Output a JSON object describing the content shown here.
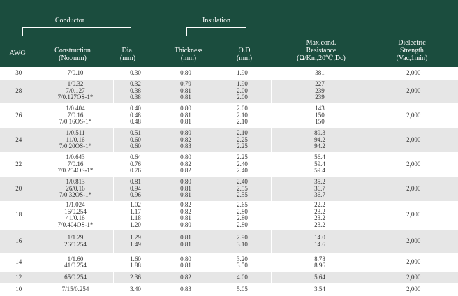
{
  "header": {
    "conductor_group": "Conductor",
    "insulation_group": "Insulation",
    "awg": "AWG",
    "construction": "Construction",
    "construction_unit": "(No./mm)",
    "dia": "Dia.",
    "dia_unit": "(mm)",
    "thickness": "Thickness",
    "thickness_unit": "(mm)",
    "od": "O.D",
    "od_unit": "(mm)",
    "resistance_l1": "Max.cond.",
    "resistance_l2": "Resistance",
    "resistance_unit": "(Ω/Km,20℃,Dc)",
    "dielectric_l1": "Dielectric",
    "dielectric_l2": "Strength",
    "dielectric_unit": "(Vac,1min)"
  },
  "colors": {
    "header_bg": "#1b4d3e",
    "alt_row": "#e6e6e6",
    "text": "#333333"
  },
  "rows": [
    {
      "awg": "30",
      "lines": [
        {
          "c": "7/0.10",
          "d": "0.30",
          "t": "0.80",
          "o": "1.90",
          "r": "381"
        }
      ],
      "ds": "2,000"
    },
    {
      "awg": "28",
      "lines": [
        {
          "c": "1/0.32",
          "d": "0.32",
          "t": "0.79",
          "o": "1.90",
          "r": "227"
        },
        {
          "c": "7/0.127",
          "d": "0.38",
          "t": "0.81",
          "o": "2.00",
          "r": "239"
        },
        {
          "c": "7/0.127OS-1*",
          "d": "0.38",
          "t": "0.81",
          "o": "2.00",
          "r": "239"
        }
      ],
      "ds": "2,000"
    },
    {
      "awg": "26",
      "lines": [
        {
          "c": "1/0.404",
          "d": "0.40",
          "t": "0.80",
          "o": "2.00",
          "r": "143"
        },
        {
          "c": "7/0.16",
          "d": "0.48",
          "t": "0.81",
          "o": "2.10",
          "r": "150"
        },
        {
          "c": "7/0.16OS-1*",
          "d": "0.48",
          "t": "0.81",
          "o": "2.10",
          "r": "150"
        }
      ],
      "ds": "2,000"
    },
    {
      "awg": "24",
      "lines": [
        {
          "c": "1/0.511",
          "d": "0.51",
          "t": "0.80",
          "o": "2.10",
          "r": "89.3"
        },
        {
          "c": "11/0.16",
          "d": "0.60",
          "t": "0.82",
          "o": "2.25",
          "r": "94.2"
        },
        {
          "c": "7/0.20OS-1*",
          "d": "0.60",
          "t": "0.83",
          "o": "2.25",
          "r": "94.2"
        }
      ],
      "ds": "2,000"
    },
    {
      "awg": "22",
      "lines": [
        {
          "c": "1/0.643",
          "d": "0.64",
          "t": "0.80",
          "o": "2.25",
          "r": "56.4"
        },
        {
          "c": "7/0.16",
          "d": "0.76",
          "t": "0.82",
          "o": "2.40",
          "r": "59.4"
        },
        {
          "c": "7/0.254OS-1*",
          "d": "0.76",
          "t": "0.82",
          "o": "2.40",
          "r": "59.4"
        }
      ],
      "ds": "2,000"
    },
    {
      "awg": "20",
      "lines": [
        {
          "c": "1/0.813",
          "d": "0.81",
          "t": "0.80",
          "o": "2.40",
          "r": "35.2"
        },
        {
          "c": "26/0.16",
          "d": "0.94",
          "t": "0.81",
          "o": "2.55",
          "r": "36.7"
        },
        {
          "c": "7/0.32OS-1*",
          "d": "0.96",
          "t": "0.81",
          "o": "2.55",
          "r": "36.7"
        }
      ],
      "ds": "2,000"
    },
    {
      "awg": "18",
      "lines": [
        {
          "c": "1/1.024",
          "d": "1.02",
          "t": "0.82",
          "o": "2.65",
          "r": "22.2"
        },
        {
          "c": "16/0.254",
          "d": "1.17",
          "t": "0.82",
          "o": "2.80",
          "r": "23.2"
        },
        {
          "c": "41/0.16",
          "d": "1.18",
          "t": "0.81",
          "o": "2.80",
          "r": "23.2"
        },
        {
          "c": "7/0.404OS-1*",
          "d": "1.20",
          "t": "0.80",
          "o": "2.80",
          "r": "23.2"
        }
      ],
      "ds": "2,000"
    },
    {
      "awg": "16",
      "lines": [
        {
          "c": "1/1.29",
          "d": "1.29",
          "t": "0.81",
          "o": "2.90",
          "r": "14.0"
        },
        {
          "c": "26/0.254",
          "d": "1.49",
          "t": "0.81",
          "o": "3.10",
          "r": "14.6"
        }
      ],
      "ds": "2,000"
    },
    {
      "awg": "14",
      "lines": [
        {
          "c": "1/1.60",
          "d": "1.60",
          "t": "0.80",
          "o": "3.20",
          "r": "8.78"
        },
        {
          "c": "41/0.254",
          "d": "1.88",
          "t": "0.81",
          "o": "3.50",
          "r": "8.96"
        }
      ],
      "ds": "2,000"
    },
    {
      "awg": "12",
      "lines": [
        {
          "c": "65/0.254",
          "d": "2.36",
          "t": "0.82",
          "o": "4.00",
          "r": "5.64"
        }
      ],
      "ds": "2,000"
    },
    {
      "awg": "10",
      "lines": [
        {
          "c": "7/15/0.254",
          "d": "3.40",
          "t": "0.83",
          "o": "5.05",
          "r": "3.54"
        }
      ],
      "ds": "2,000"
    }
  ]
}
